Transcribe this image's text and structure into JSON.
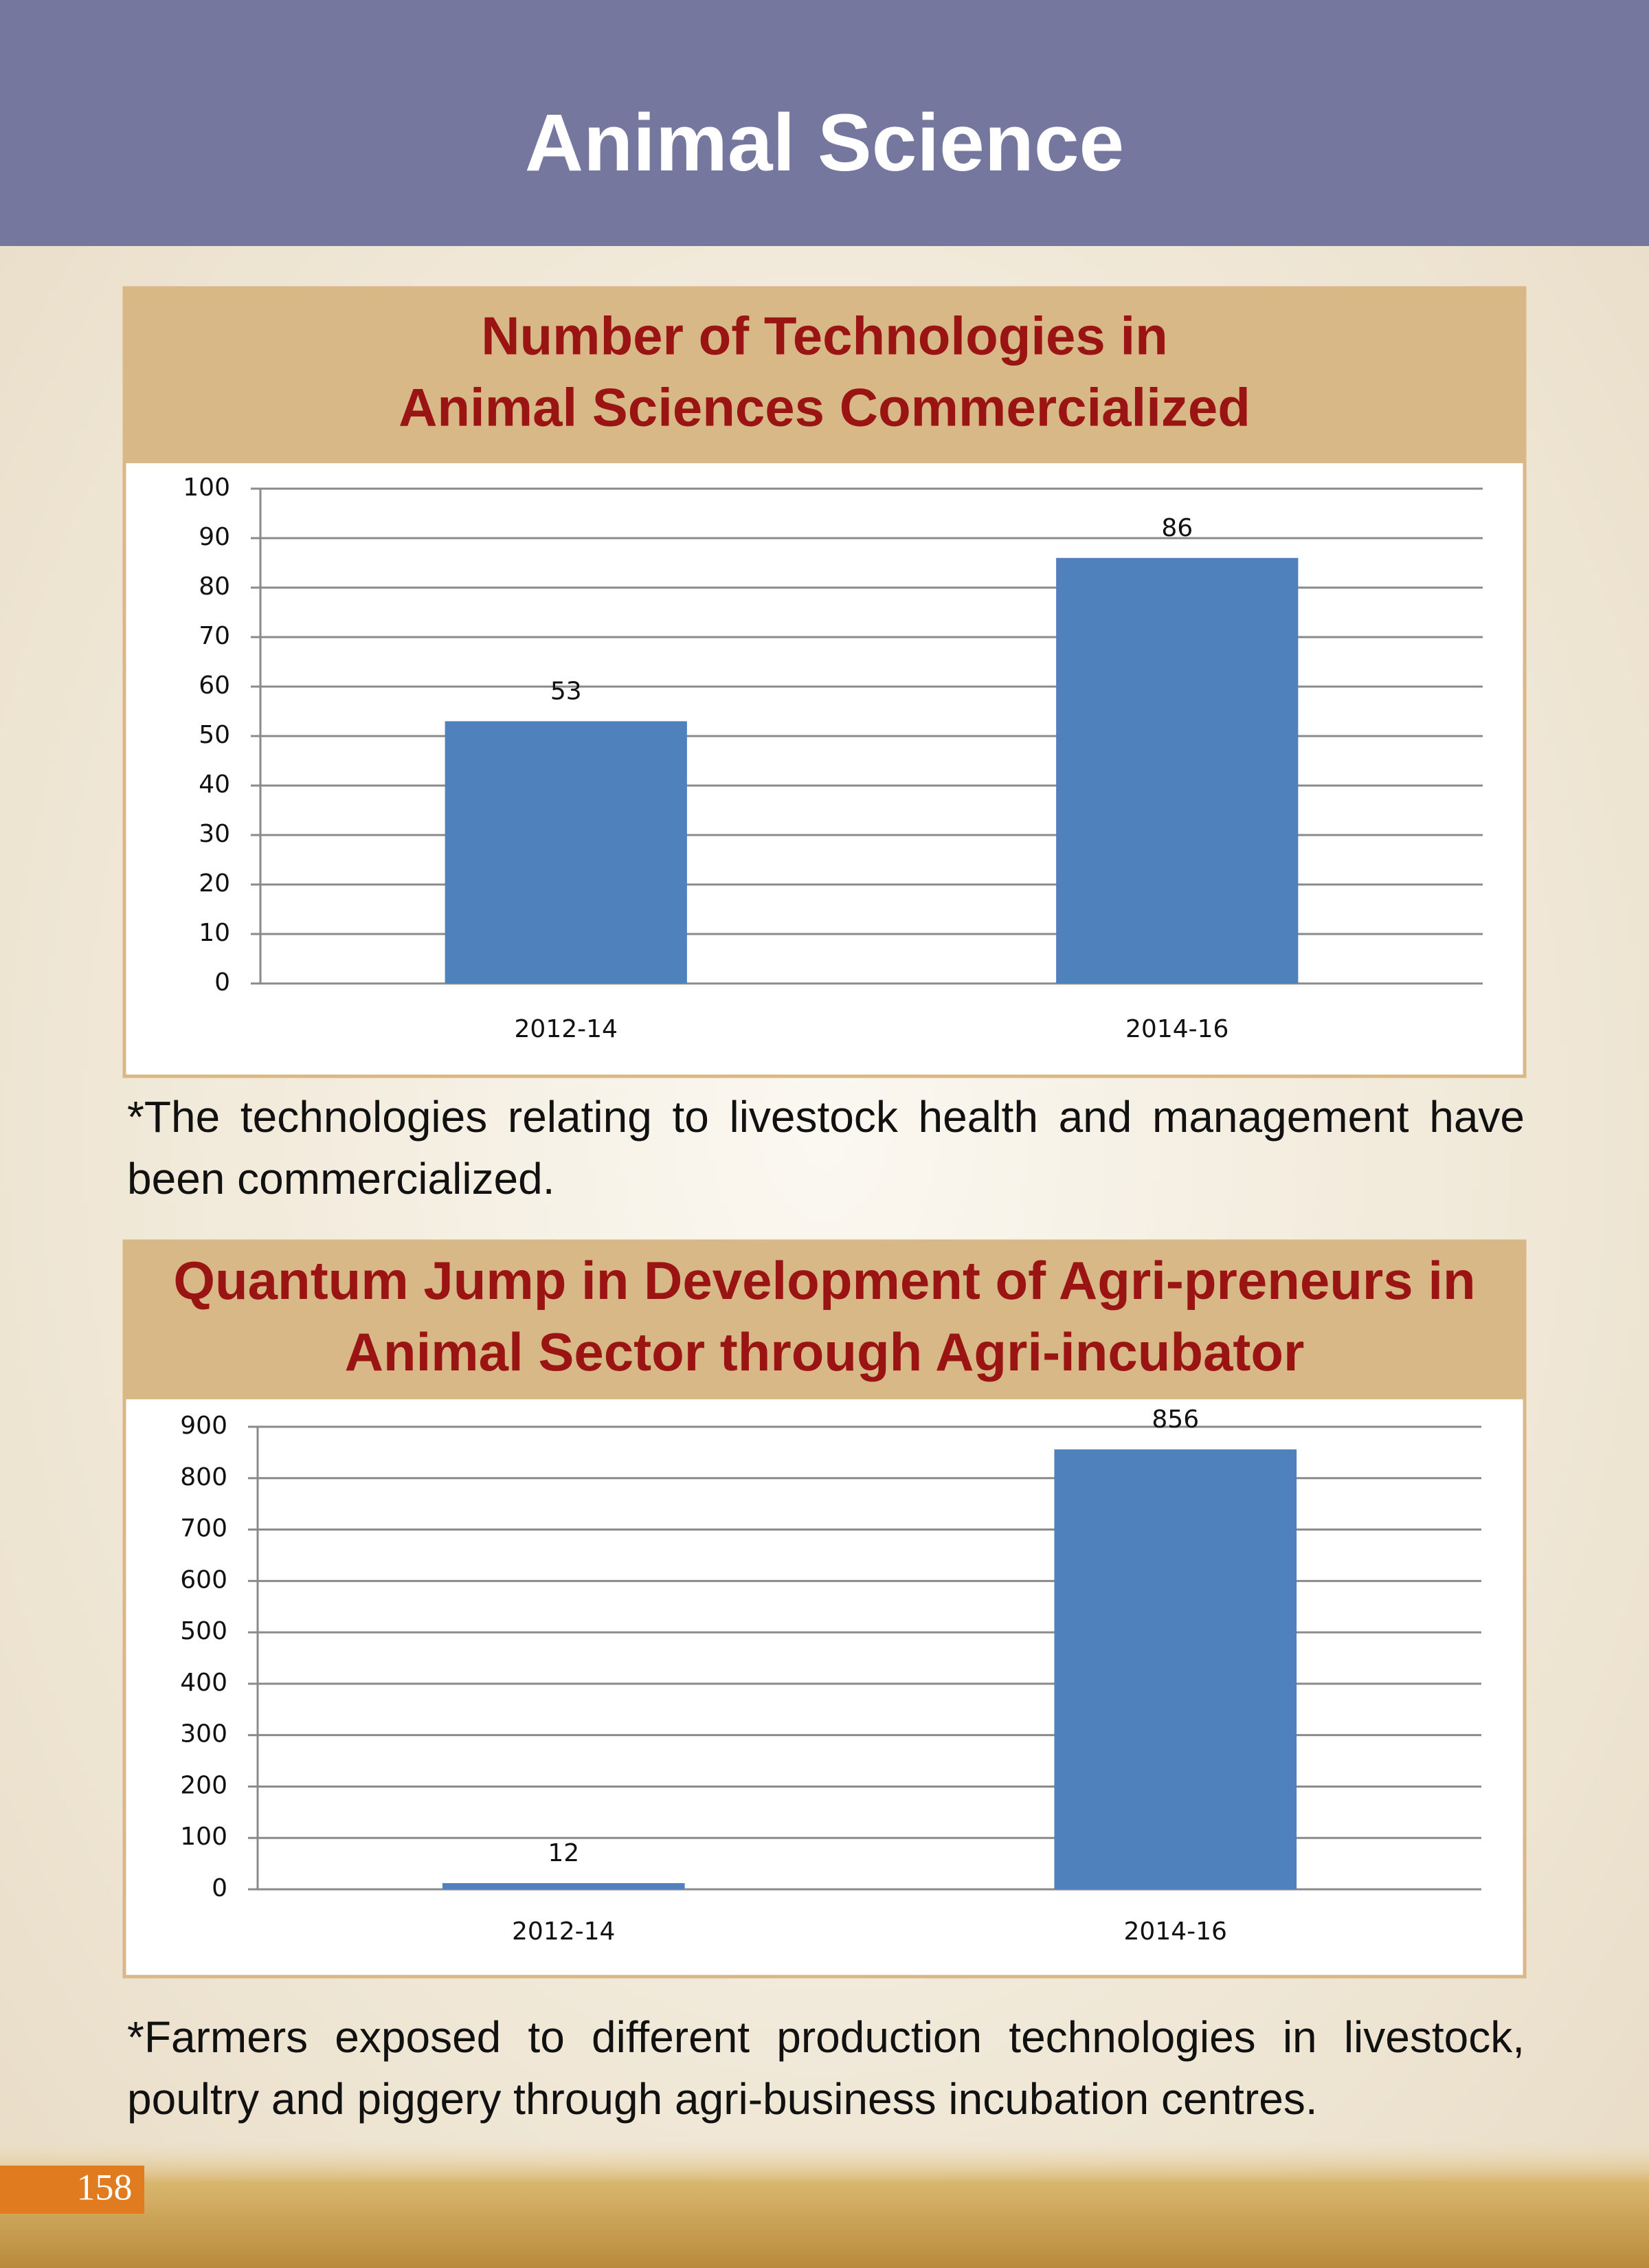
{
  "header": {
    "title": "Animal Science"
  },
  "chart_data": [
    {
      "type": "bar",
      "title": "Number of Technologies in\nAnimal Sciences Commercialized",
      "categories": [
        "2012-14",
        "2014-16"
      ],
      "values": [
        53,
        86
      ],
      "color": "#4f81bd",
      "ylim": [
        0,
        100
      ],
      "yticks": [
        0,
        10,
        20,
        30,
        40,
        50,
        60,
        70,
        80,
        90,
        100
      ],
      "grid": true
    },
    {
      "type": "bar",
      "title": "Quantum Jump in Development of Agri-preneurs in\nAnimal Sector through Agri-incubator",
      "categories": [
        "2012-14",
        "2014-16"
      ],
      "values": [
        12,
        856
      ],
      "color": "#4f81bd",
      "ylim": [
        0,
        900
      ],
      "yticks": [
        0,
        100,
        200,
        300,
        400,
        500,
        600,
        700,
        800,
        900
      ],
      "grid": true
    }
  ],
  "notes": [
    "*The technologies relating to livestock health and management have been commercialized.",
    "*Farmers exposed to different production technologies in livestock, poultry and piggery through agri-business incubation centres."
  ],
  "page_number": "158"
}
